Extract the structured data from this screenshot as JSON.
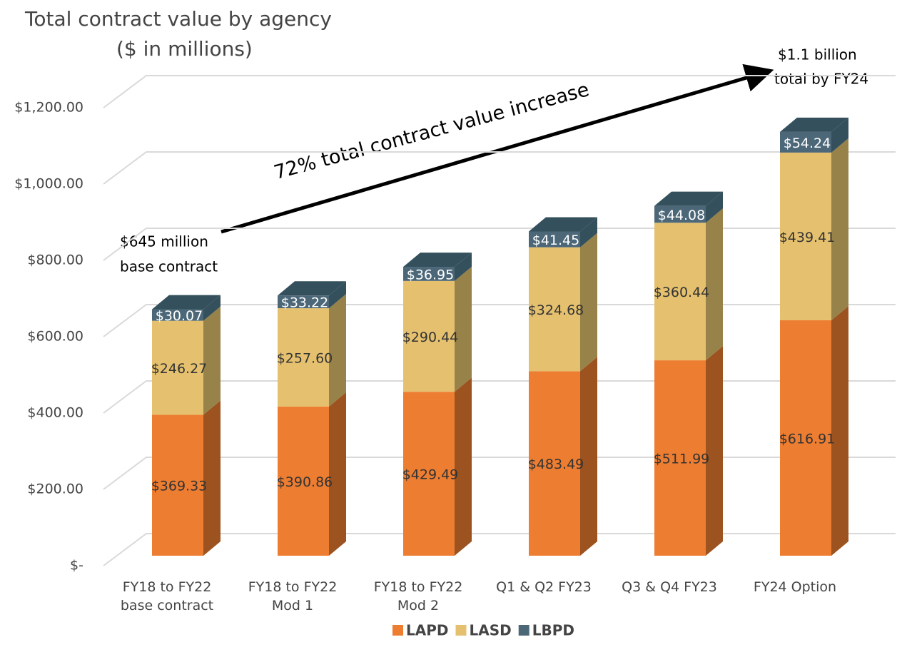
{
  "chart_data": {
    "type": "stacked_bar_3d",
    "title": "Total contract value by agency",
    "subtitle": "($ in millions)",
    "categories": [
      "FY18 to FY22 base contract",
      "FY18 to FY22 Mod 1",
      "FY18 to FY22 Mod 2",
      "Q1 & Q2 FY23",
      "Q3 & Q4 FY23",
      "FY24 Option"
    ],
    "series": [
      {
        "name": "LAPD",
        "color": "#ed7d31",
        "side_color": "#9c531f",
        "label_color": "#333333",
        "values": [
          369.33,
          390.86,
          429.49,
          483.49,
          511.99,
          616.91
        ],
        "value_labels": [
          "$369.33",
          "$390.86",
          "$429.49",
          "$483.49",
          "$511.99",
          "$616.91"
        ]
      },
      {
        "name": "LASD",
        "color": "#e5c16f",
        "side_color": "#978249",
        "label_color": "#333333",
        "values": [
          246.27,
          257.6,
          290.44,
          324.68,
          360.44,
          439.41
        ],
        "value_labels": [
          "$246.27",
          "$257.60",
          "$290.44",
          "$324.68",
          "$360.44",
          "$439.41"
        ]
      },
      {
        "name": "LBPD",
        "color": "#4c6878",
        "side_color": "#34505c",
        "label_color": "#ffffff",
        "values": [
          30.07,
          33.22,
          36.95,
          41.45,
          44.08,
          54.24
        ],
        "value_labels": [
          "$30.07",
          "$33.22",
          "$36.95",
          "$41.45",
          "$44.08",
          "$54.24"
        ]
      }
    ],
    "ylim": [
      0,
      1200
    ],
    "yticks": [
      {
        "value": 0,
        "label": "$-"
      },
      {
        "value": 200,
        "label": "$200.00"
      },
      {
        "value": 400,
        "label": "$400.00"
      },
      {
        "value": 600,
        "label": "$600.00"
      },
      {
        "value": 800,
        "label": "$800.00"
      },
      {
        "value": 1000,
        "label": "$1,000.00"
      },
      {
        "value": 1200,
        "label": "$1,200.00"
      }
    ],
    "grid": true,
    "legend": "bottom",
    "annotations": {
      "arrow_text": "72% total contract value increase",
      "start_line1": "$645 million",
      "start_line2": "base contract",
      "end_line1": "$1.1 billion",
      "end_line2": "total by FY24"
    }
  }
}
